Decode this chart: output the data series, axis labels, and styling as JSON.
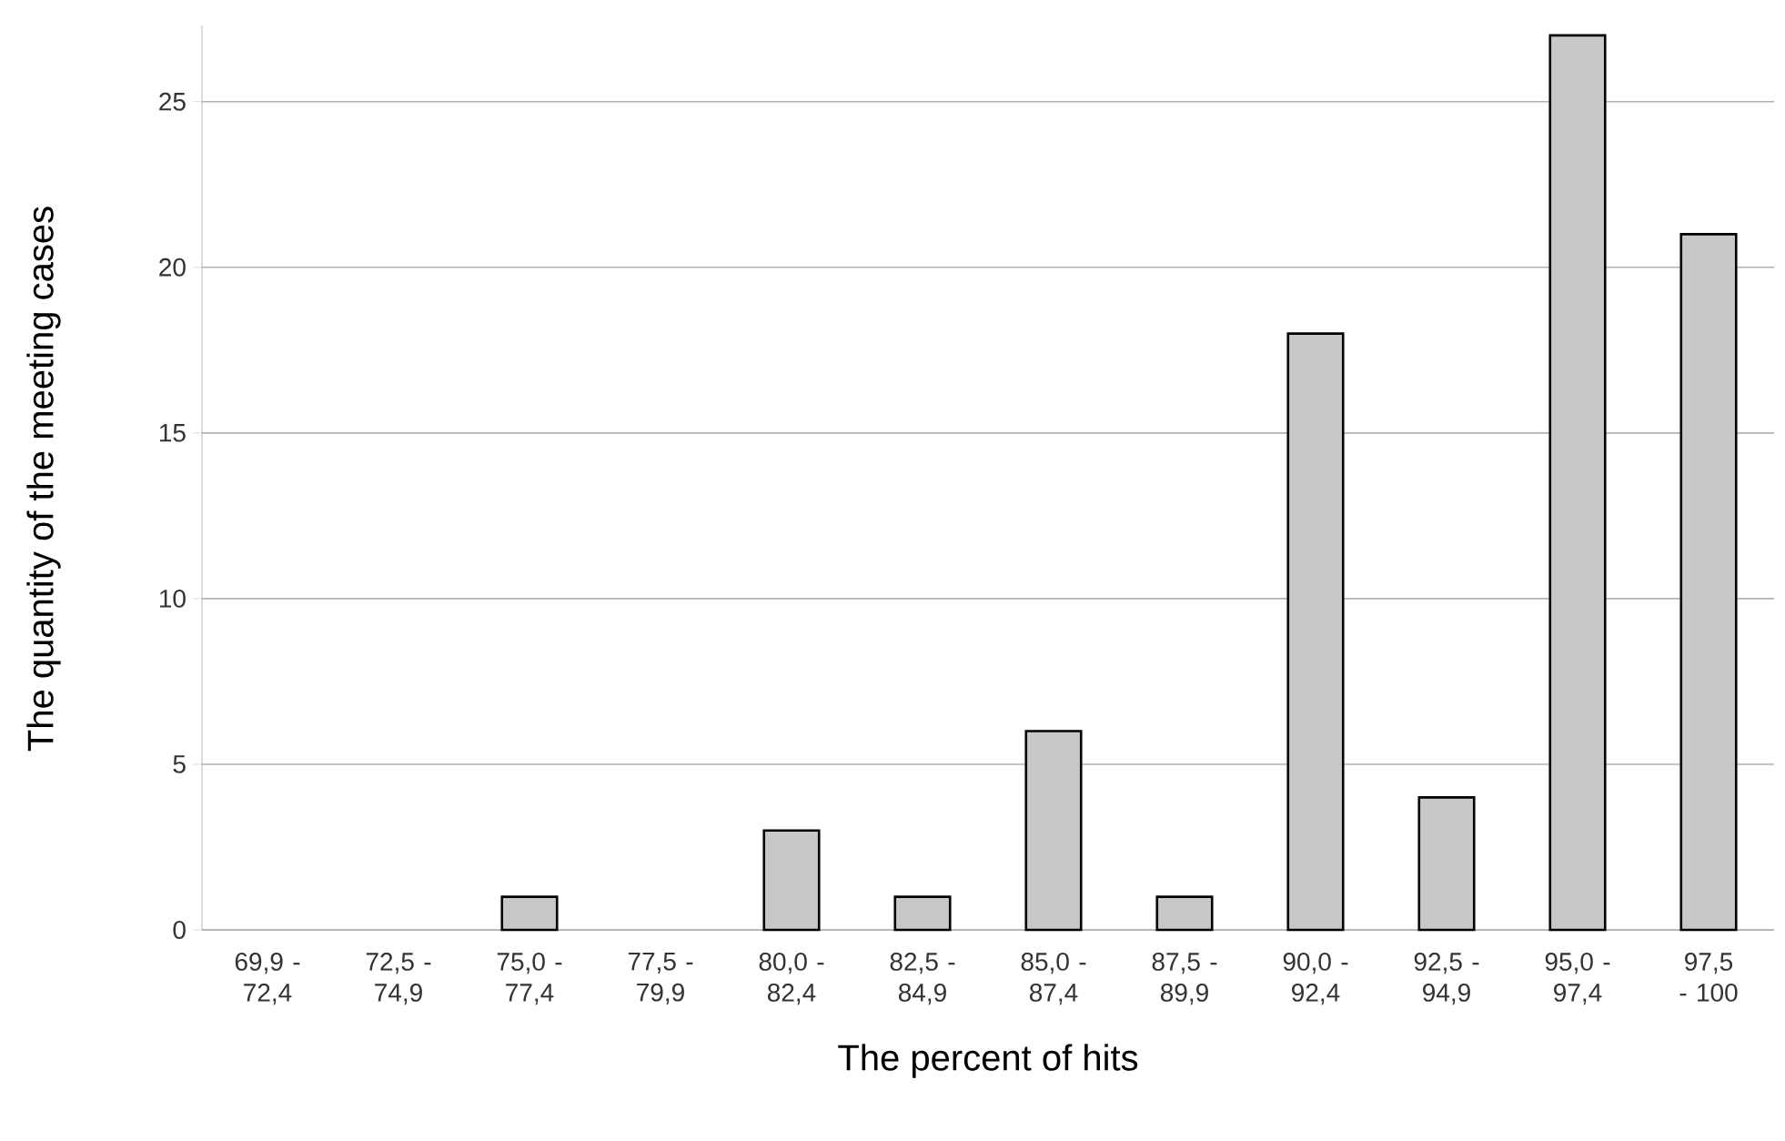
{
  "chart_data": {
    "type": "bar",
    "xlabel": "The percent of hits",
    "ylabel": "The quantity of the meeting cases",
    "categories": [
      "69,9 - 72,4",
      "72,5 - 74,9",
      "75,0 - 77,4",
      "77,5 - 79,9",
      "80,0 - 82,4",
      "82,5 - 84,9",
      "85,0 - 87,4",
      "87,5 - 89,9",
      "90,0 - 92,4",
      "92,5 - 94,9",
      "95,0 - 97,4",
      "97,5 - 100"
    ],
    "values": [
      0,
      0,
      1,
      0,
      3,
      1,
      6,
      1,
      18,
      4,
      27,
      21
    ],
    "color": "#c8c8c8",
    "ylim": [
      0,
      27.3
    ],
    "yticks": [
      0,
      5,
      10,
      15,
      20,
      25
    ],
    "grid": "y"
  }
}
